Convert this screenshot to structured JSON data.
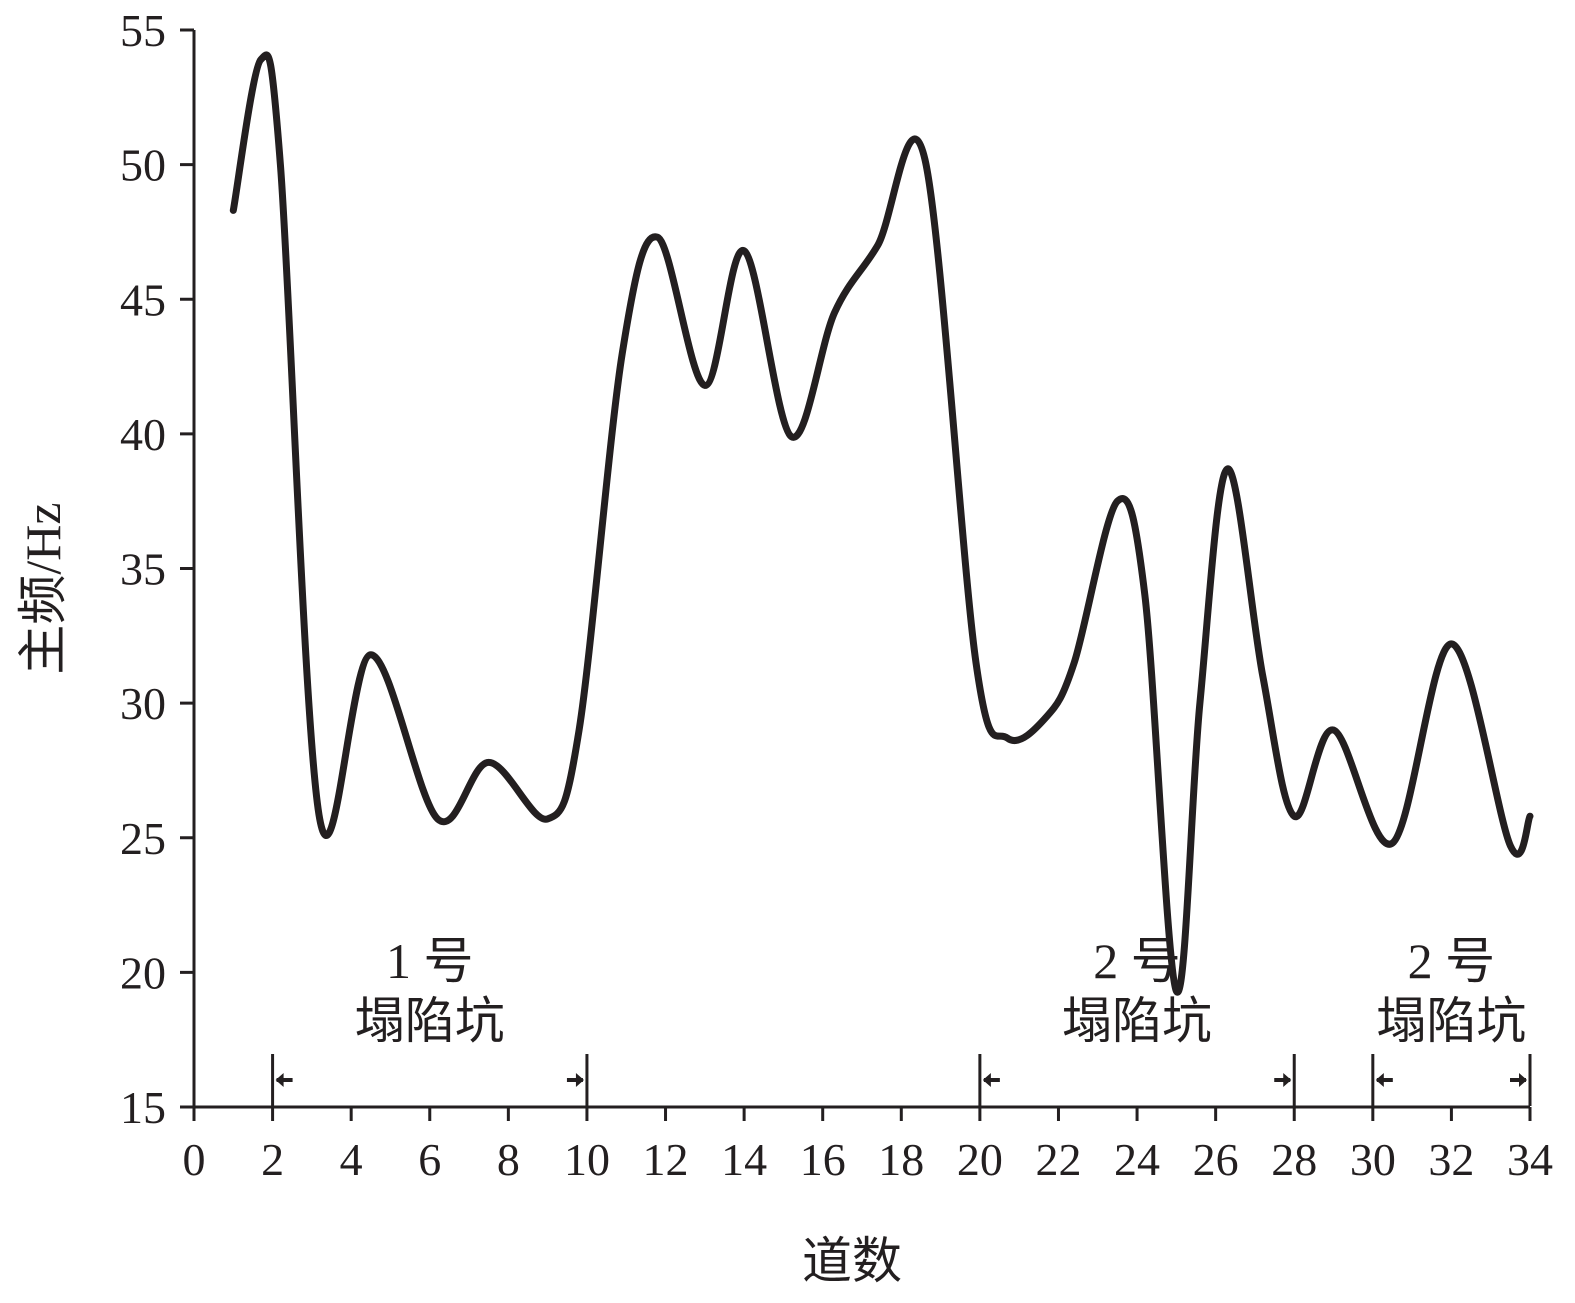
{
  "chart_data": {
    "type": "line",
    "xlabel": "道数",
    "ylabel": "主频/Hz",
    "xlim": [
      0,
      34
    ],
    "ylim": [
      15,
      55
    ],
    "x_ticks": [
      "0",
      "2",
      "4",
      "6",
      "8",
      "10",
      "12",
      "14",
      "16",
      "18",
      "20",
      "22",
      "24",
      "26",
      "28",
      "30",
      "32",
      "34"
    ],
    "y_ticks": [
      "15",
      "20",
      "25",
      "30",
      "35",
      "40",
      "45",
      "50",
      "55"
    ],
    "grid": false,
    "legend": "none",
    "line_color": "#231f20",
    "series": [
      {
        "x": [
          1,
          1.7,
          2.2,
          3.2,
          4.5,
          6.2,
          7.5,
          9.0,
          9.8,
          10.9,
          11.8,
          13.0,
          14.0,
          15.2,
          16.3,
          17.4,
          18.6,
          19.9,
          20.7,
          21.7,
          22.4,
          23.5,
          24.2,
          25.0,
          25.6,
          26.3,
          27.2,
          28.0,
          29.0,
          30.5,
          32.0,
          33.5,
          34.0
        ],
        "y": [
          48.3,
          53.9,
          50.0,
          25.7,
          31.8,
          25.7,
          27.8,
          25.7,
          29.0,
          43.0,
          47.3,
          41.8,
          46.8,
          39.9,
          44.5,
          47.0,
          50.2,
          31.5,
          28.7,
          29.5,
          31.5,
          37.5,
          34.0,
          19.3,
          30.0,
          38.7,
          31.0,
          25.8,
          29.0,
          24.8,
          32.2,
          24.7,
          25.8
        ]
      }
    ],
    "annotations": [
      {
        "line1": "1 号",
        "line2": "塌陷坑",
        "x_start": 2,
        "x_end": 10
      },
      {
        "line1": "2 号",
        "line2": "塌陷坑",
        "x_start": 20,
        "x_end": 28
      },
      {
        "line1": "2 号",
        "line2": "塌陷坑",
        "x_start": 30,
        "x_end": 34
      }
    ]
  }
}
